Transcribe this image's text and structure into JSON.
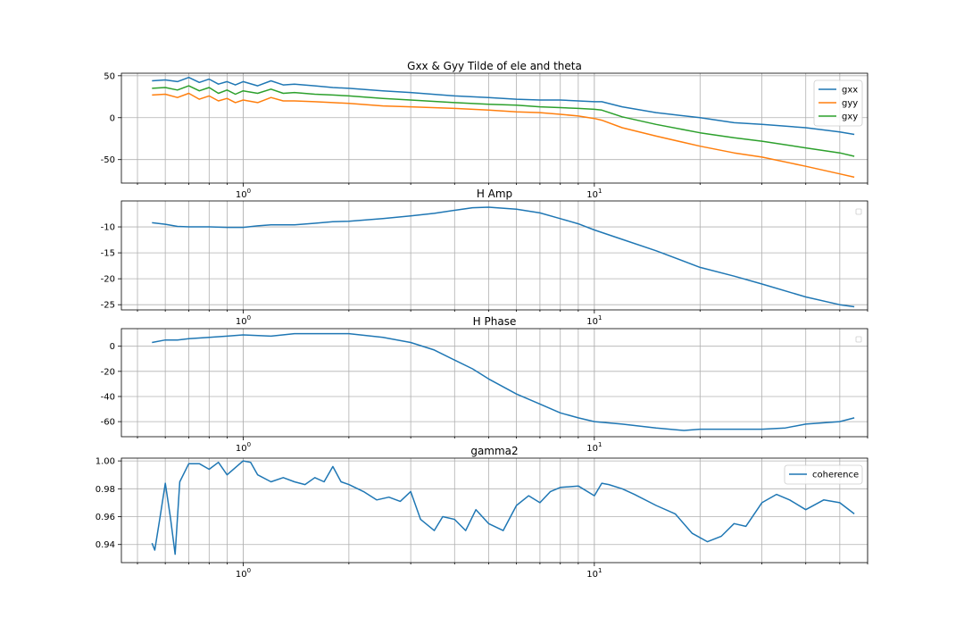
{
  "chart_data": [
    {
      "type": "line",
      "title": "Gxx & Gyy Tilde of ele and theta",
      "xscale": "log",
      "xlim": [
        0.45,
        60
      ],
      "ylim": [
        -78,
        53
      ],
      "grid": "major and minor",
      "legend": "top-right",
      "x_tick_labels": [
        "10^0",
        "10^1"
      ],
      "y_ticks": [
        50,
        0,
        -50
      ],
      "series": [
        {
          "name": "gxx",
          "color": "#1f77b4",
          "x": [
            0.55,
            0.6,
            0.65,
            0.7,
            0.75,
            0.8,
            0.85,
            0.9,
            0.95,
            1.0,
            1.1,
            1.2,
            1.3,
            1.4,
            1.6,
            1.8,
            2.0,
            2.5,
            3.0,
            4.0,
            5.0,
            6.0,
            7.0,
            8.0,
            9.0,
            10.0,
            10.5,
            12,
            15,
            20,
            25,
            30,
            40,
            50,
            55
          ],
          "y": [
            44,
            45,
            43,
            48,
            42,
            46,
            40,
            43,
            39,
            43,
            38,
            44,
            39,
            40,
            38,
            36,
            35,
            32,
            30,
            26,
            24,
            22,
            21,
            21,
            20,
            19,
            19,
            13,
            6,
            0,
            -6,
            -8,
            -12,
            -17,
            -20
          ]
        },
        {
          "name": "gyy",
          "color": "#ff7f0e",
          "x": [
            0.55,
            0.6,
            0.65,
            0.7,
            0.75,
            0.8,
            0.85,
            0.9,
            0.95,
            1.0,
            1.1,
            1.2,
            1.3,
            1.4,
            1.6,
            1.8,
            2.0,
            2.5,
            3.0,
            4.0,
            5.0,
            6.0,
            7.0,
            8.0,
            9.0,
            10.0,
            10.5,
            12,
            15,
            20,
            25,
            30,
            40,
            50,
            55
          ],
          "y": [
            27,
            28,
            24,
            29,
            22,
            26,
            20,
            23,
            18,
            21,
            18,
            24,
            20,
            20,
            19,
            18,
            17,
            14,
            13,
            11,
            9,
            7,
            6,
            4,
            2,
            -1,
            -3,
            -12,
            -22,
            -34,
            -42,
            -47,
            -58,
            -67,
            -71
          ]
        },
        {
          "name": "gxy",
          "color": "#2ca02c",
          "x": [
            0.55,
            0.6,
            0.65,
            0.7,
            0.75,
            0.8,
            0.85,
            0.9,
            0.95,
            1.0,
            1.1,
            1.2,
            1.3,
            1.4,
            1.6,
            1.8,
            2.0,
            2.5,
            3.0,
            4.0,
            5.0,
            6.0,
            7.0,
            8.0,
            9.0,
            10.0,
            10.5,
            12,
            15,
            20,
            25,
            30,
            40,
            50,
            55
          ],
          "y": [
            35,
            36,
            33,
            38,
            32,
            36,
            29,
            33,
            28,
            32,
            29,
            34,
            29,
            30,
            28,
            27,
            26,
            23,
            21,
            18,
            16,
            15,
            13,
            12,
            11,
            10,
            9,
            1,
            -8,
            -18,
            -24,
            -28,
            -36,
            -42,
            -46
          ]
        }
      ]
    },
    {
      "type": "line",
      "title": "H Amp",
      "xscale": "log",
      "xlim": [
        0.45,
        60
      ],
      "ylim": [
        -26,
        -5
      ],
      "grid": "major and minor",
      "x_tick_labels": [
        "10^0",
        "10^1"
      ],
      "y_ticks": [
        -10,
        -15,
        -20,
        -25
      ],
      "series": [
        {
          "color": "#1f77b4",
          "x": [
            0.55,
            0.6,
            0.65,
            0.7,
            0.8,
            0.9,
            1.0,
            1.1,
            1.2,
            1.4,
            1.6,
            1.8,
            2.0,
            2.5,
            3.0,
            3.5,
            4.0,
            4.5,
            5.0,
            6.0,
            7.0,
            8.0,
            9.0,
            10.0,
            12,
            15,
            20,
            25,
            30,
            40,
            50,
            55
          ],
          "y": [
            -9.2,
            -9.5,
            -9.9,
            -10.0,
            -10.0,
            -10.1,
            -10.1,
            -9.8,
            -9.6,
            -9.6,
            -9.3,
            -9.0,
            -8.9,
            -8.4,
            -7.9,
            -7.4,
            -6.8,
            -6.3,
            -6.2,
            -6.6,
            -7.3,
            -8.4,
            -9.4,
            -10.6,
            -12.4,
            -14.6,
            -17.8,
            -19.5,
            -21.0,
            -23.5,
            -25.0,
            -25.4
          ]
        }
      ]
    },
    {
      "type": "line",
      "title": "H Phase",
      "xscale": "log",
      "xlim": [
        0.45,
        60
      ],
      "ylim": [
        -72,
        14
      ],
      "grid": "major and minor",
      "x_tick_labels": [
        "10^0",
        "10^1"
      ],
      "y_ticks": [
        0,
        -20,
        -40,
        -60
      ],
      "series": [
        {
          "color": "#1f77b4",
          "x": [
            0.55,
            0.6,
            0.65,
            0.7,
            0.8,
            0.9,
            1.0,
            1.2,
            1.4,
            1.6,
            1.8,
            2.0,
            2.5,
            3.0,
            3.5,
            4.0,
            4.5,
            5.0,
            6.0,
            7.0,
            8.0,
            9.0,
            10.0,
            12,
            15,
            18,
            20,
            25,
            30,
            35,
            40,
            50,
            55
          ],
          "y": [
            3,
            5,
            5,
            6,
            7,
            8,
            9,
            8,
            10,
            10,
            10,
            10,
            7,
            3,
            -3,
            -11,
            -18,
            -26,
            -38,
            -46,
            -53,
            -57,
            -60,
            -62,
            -65,
            -67,
            -66,
            -66,
            -66,
            -65,
            -62,
            -60,
            -57
          ]
        }
      ]
    },
    {
      "type": "line",
      "title": "gamma2",
      "xscale": "log",
      "xlim": [
        0.45,
        60
      ],
      "ylim": [
        0.927,
        1.002
      ],
      "grid": "major and minor",
      "legend": "top-right",
      "x_tick_labels": [
        "10^0",
        "10^1"
      ],
      "y_ticks": [
        1.0,
        0.98,
        0.96,
        0.94
      ],
      "series": [
        {
          "name": "coherence",
          "color": "#1f77b4",
          "x": [
            0.55,
            0.56,
            0.58,
            0.6,
            0.62,
            0.64,
            0.66,
            0.7,
            0.75,
            0.8,
            0.85,
            0.9,
            1.0,
            1.05,
            1.1,
            1.2,
            1.3,
            1.4,
            1.5,
            1.6,
            1.7,
            1.8,
            1.9,
            2.0,
            2.2,
            2.4,
            2.6,
            2.8,
            3.0,
            3.2,
            3.5,
            3.7,
            4.0,
            4.3,
            4.6,
            5.0,
            5.5,
            6.0,
            6.5,
            7.0,
            7.5,
            8.0,
            9.0,
            10.0,
            10.5,
            11,
            12,
            13,
            15,
            17,
            19,
            21,
            23,
            25,
            27,
            30,
            33,
            36,
            40,
            45,
            50,
            55
          ],
          "y": [
            0.941,
            0.936,
            0.96,
            0.984,
            0.96,
            0.933,
            0.985,
            0.998,
            0.998,
            0.994,
            0.999,
            0.99,
            1.0,
            0.999,
            0.99,
            0.985,
            0.988,
            0.985,
            0.983,
            0.988,
            0.985,
            0.996,
            0.985,
            0.983,
            0.978,
            0.972,
            0.974,
            0.971,
            0.978,
            0.958,
            0.95,
            0.96,
            0.958,
            0.95,
            0.965,
            0.955,
            0.95,
            0.968,
            0.975,
            0.97,
            0.978,
            0.981,
            0.982,
            0.975,
            0.984,
            0.983,
            0.98,
            0.976,
            0.968,
            0.962,
            0.948,
            0.942,
            0.946,
            0.955,
            0.953,
            0.97,
            0.976,
            0.972,
            0.965,
            0.972,
            0.97,
            0.962
          ]
        }
      ]
    }
  ]
}
